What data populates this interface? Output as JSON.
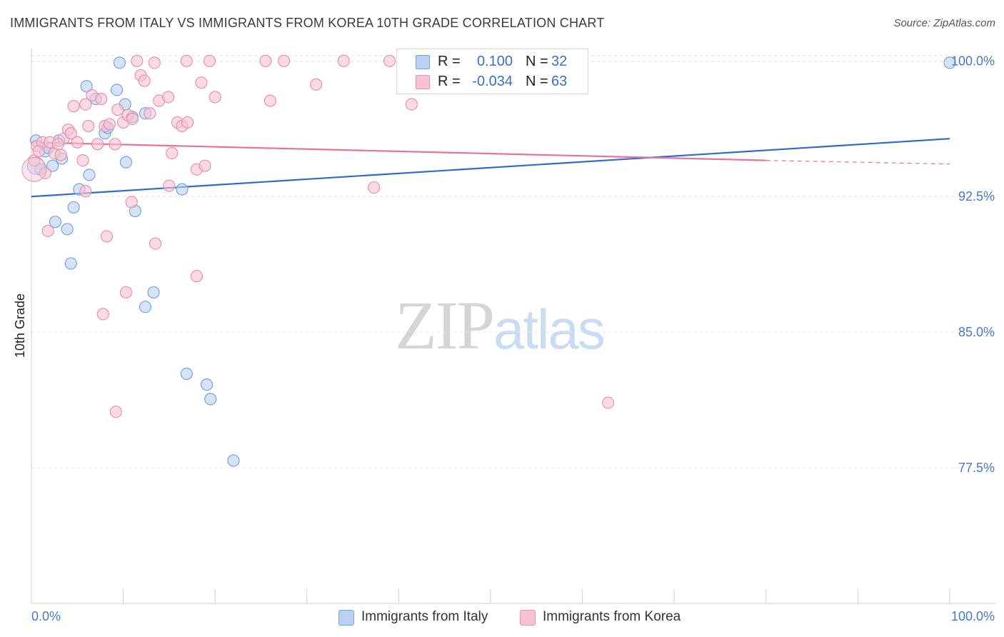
{
  "title": "IMMIGRANTS FROM ITALY VS IMMIGRANTS FROM KOREA 10TH GRADE CORRELATION CHART",
  "source": "Source: ZipAtlas.com",
  "watermark": {
    "zip": "ZIP",
    "atlas": "atlas"
  },
  "legend": {
    "italy": {
      "r_label": "R =",
      "r_value": "0.100",
      "n_label": "N =",
      "n_value": "32"
    },
    "korea": {
      "r_label": "R =",
      "r_value": "-0.034",
      "n_label": "N =",
      "n_value": "63"
    }
  },
  "bottom_legend": {
    "italy": "Immigrants from Italy",
    "korea": "Immigrants from Korea"
  },
  "colors": {
    "italy_fill": "#b9d0f2",
    "italy_stroke": "#7aa3dd",
    "italy_line": "#2f6cc9",
    "korea_fill": "#f7c3d3",
    "korea_stroke": "#e891ad",
    "korea_line": "#e8719a",
    "tick": "#4a78c8",
    "grid": "#e6e6e6"
  },
  "chart_data": {
    "type": "scatter",
    "title": "IMMIGRANTS FROM ITALY VS IMMIGRANTS FROM KOREA 10TH GRADE CORRELATION CHART",
    "xlabel": "",
    "ylabel": "10th Grade",
    "xlim": [
      0,
      100
    ],
    "ylim": [
      70.0,
      101.0
    ],
    "x_tick_labels": [
      "0.0%",
      "100.0%"
    ],
    "y_ticks": [
      77.5,
      85.0,
      92.5,
      100.0
    ],
    "y_tick_labels": [
      "77.5%",
      "85.0%",
      "92.5%",
      "100.0%"
    ],
    "grid": true,
    "legend_position": "top-center",
    "series": [
      {
        "name": "Immigrants from Italy",
        "points": [
          [
            0.5,
            95.6
          ],
          [
            1.5,
            95.0
          ],
          [
            1.8,
            95.2
          ],
          [
            3.0,
            95.6
          ],
          [
            3.3,
            94.6
          ],
          [
            6.3,
            93.7
          ],
          [
            6.0,
            98.6
          ],
          [
            7.0,
            97.9
          ],
          [
            8.0,
            96.0
          ],
          [
            8.3,
            96.3
          ],
          [
            9.3,
            98.4
          ],
          [
            9.6,
            99.9
          ],
          [
            10.2,
            97.6
          ],
          [
            10.3,
            94.4
          ],
          [
            12.4,
            97.1
          ],
          [
            5.2,
            92.9
          ],
          [
            4.6,
            91.9
          ],
          [
            2.6,
            91.1
          ],
          [
            3.9,
            90.7
          ],
          [
            11.3,
            91.7
          ],
          [
            4.3,
            88.8
          ],
          [
            13.3,
            87.2
          ],
          [
            12.4,
            86.4
          ],
          [
            16.4,
            92.9
          ],
          [
            16.9,
            82.7
          ],
          [
            19.1,
            82.1
          ],
          [
            19.5,
            81.3
          ],
          [
            22.0,
            77.9
          ],
          [
            100.0,
            99.9
          ],
          [
            11.0,
            96.9
          ],
          [
            2.3,
            94.2
          ],
          [
            1.0,
            94.0
          ]
        ]
      },
      {
        "name": "Immigrants from Korea",
        "points": [
          [
            0.3,
            94.5
          ],
          [
            0.6,
            95.3
          ],
          [
            1.2,
            95.5
          ],
          [
            2.0,
            95.5
          ],
          [
            2.5,
            94.9
          ],
          [
            3.2,
            94.8
          ],
          [
            3.5,
            95.7
          ],
          [
            4.0,
            96.2
          ],
          [
            4.3,
            96.0
          ],
          [
            4.6,
            97.5
          ],
          [
            5.0,
            95.5
          ],
          [
            5.6,
            94.5
          ],
          [
            5.9,
            97.6
          ],
          [
            6.2,
            96.4
          ],
          [
            6.6,
            98.1
          ],
          [
            7.2,
            95.4
          ],
          [
            7.6,
            97.9
          ],
          [
            8.0,
            96.4
          ],
          [
            8.5,
            96.5
          ],
          [
            9.1,
            95.4
          ],
          [
            9.4,
            97.3
          ],
          [
            10.0,
            96.6
          ],
          [
            10.5,
            97.0
          ],
          [
            11.0,
            96.8
          ],
          [
            11.5,
            100.0
          ],
          [
            11.9,
            99.2
          ],
          [
            12.3,
            98.9
          ],
          [
            12.9,
            97.1
          ],
          [
            13.4,
            99.9
          ],
          [
            13.9,
            97.8
          ],
          [
            14.9,
            98.0
          ],
          [
            15.3,
            94.9
          ],
          [
            15.9,
            96.6
          ],
          [
            16.4,
            96.4
          ],
          [
            16.9,
            100.0
          ],
          [
            18.0,
            94.0
          ],
          [
            18.5,
            98.8
          ],
          [
            18.9,
            94.2
          ],
          [
            19.4,
            100.0
          ],
          [
            20.0,
            98.0
          ],
          [
            25.5,
            100.0
          ],
          [
            26.0,
            97.8
          ],
          [
            27.5,
            100.0
          ],
          [
            31.0,
            98.7
          ],
          [
            34.0,
            100.0
          ],
          [
            39.0,
            100.0
          ],
          [
            15.0,
            93.1
          ],
          [
            17.0,
            96.6
          ],
          [
            1.8,
            90.6
          ],
          [
            5.9,
            92.8
          ],
          [
            8.2,
            90.3
          ],
          [
            10.9,
            92.2
          ],
          [
            13.5,
            89.9
          ],
          [
            18.0,
            88.1
          ],
          [
            10.3,
            87.2
          ],
          [
            7.8,
            86.0
          ],
          [
            9.2,
            80.6
          ],
          [
            37.3,
            93.0
          ],
          [
            41.4,
            97.6
          ],
          [
            62.8,
            81.1
          ],
          [
            0.8,
            95.0
          ],
          [
            2.9,
            95.4
          ],
          [
            1.5,
            93.8
          ]
        ]
      }
    ],
    "trend_lines": [
      {
        "name": "Immigrants from Italy",
        "x": [
          0,
          100
        ],
        "y": [
          92.5,
          95.7
        ]
      },
      {
        "name": "Immigrants from Korea",
        "x": [
          0,
          80
        ],
        "y": [
          95.5,
          94.5
        ],
        "dashed_to": [
          100,
          94.3
        ]
      }
    ]
  }
}
